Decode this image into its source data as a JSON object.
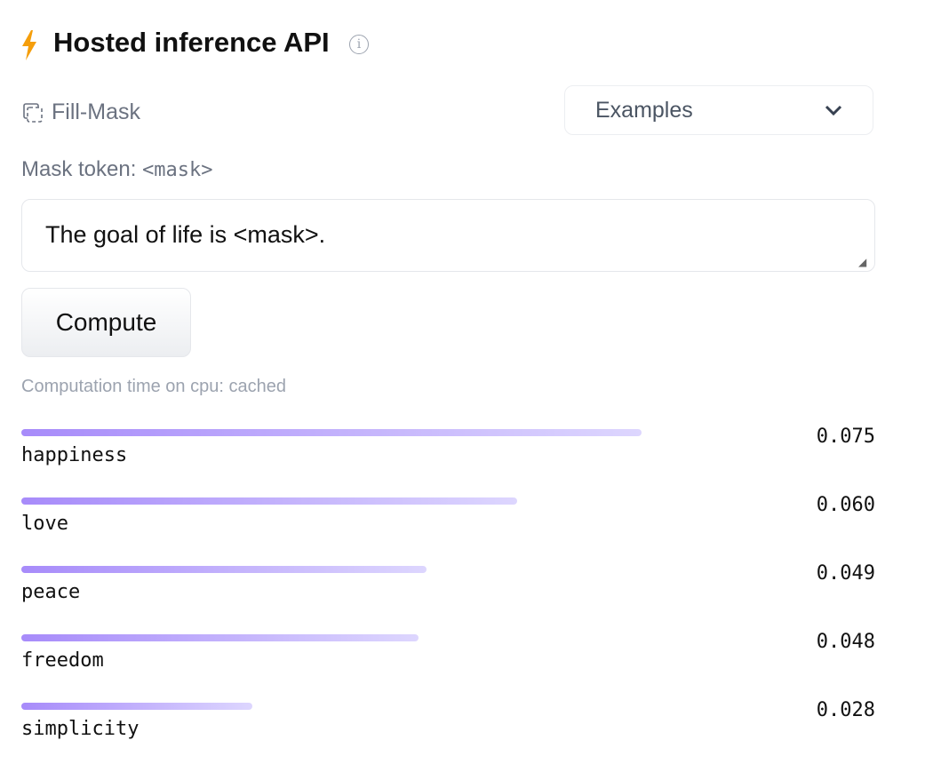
{
  "header": {
    "title": "Hosted inference API",
    "info_icon": "info-icon",
    "bolt_color": "#f59e0b"
  },
  "task": {
    "label": "Fill-Mask"
  },
  "examples": {
    "label": "Examples"
  },
  "mask": {
    "label": "Mask token:",
    "token": "<mask>"
  },
  "input": {
    "value": "The goal of life is <mask>."
  },
  "compute": {
    "label": "Compute"
  },
  "computation_time": "Computation time on cpu: cached",
  "results": [
    {
      "label": "happiness",
      "score": 0.075,
      "score_text": "0.075"
    },
    {
      "label": "love",
      "score": 0.06,
      "score_text": "0.060"
    },
    {
      "label": "peace",
      "score": 0.049,
      "score_text": "0.049"
    },
    {
      "label": "freedom",
      "score": 0.048,
      "score_text": "0.048"
    },
    {
      "label": "simplicity",
      "score": 0.028,
      "score_text": "0.028"
    }
  ]
}
